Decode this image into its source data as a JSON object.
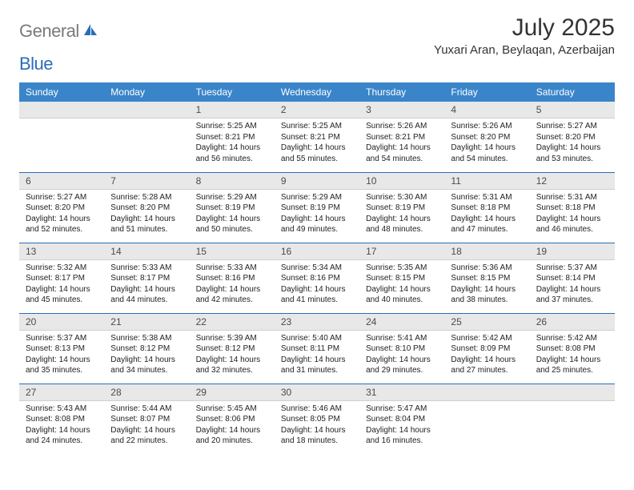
{
  "logo": {
    "gray": "General",
    "blue": "Blue"
  },
  "title": "July 2025",
  "location": "Yuxari Aran, Beylaqan, Azerbaijan",
  "colors": {
    "header_bg": "#3a85c9",
    "header_fg": "#ffffff",
    "daynum_bg": "#e8e8e8",
    "rule": "#2a6db8"
  },
  "weekdays": [
    "Sunday",
    "Monday",
    "Tuesday",
    "Wednesday",
    "Thursday",
    "Friday",
    "Saturday"
  ],
  "weeks": [
    [
      null,
      null,
      {
        "n": "1",
        "sr": "5:25 AM",
        "ss": "8:21 PM",
        "dl": "14 hours and 56 minutes."
      },
      {
        "n": "2",
        "sr": "5:25 AM",
        "ss": "8:21 PM",
        "dl": "14 hours and 55 minutes."
      },
      {
        "n": "3",
        "sr": "5:26 AM",
        "ss": "8:21 PM",
        "dl": "14 hours and 54 minutes."
      },
      {
        "n": "4",
        "sr": "5:26 AM",
        "ss": "8:20 PM",
        "dl": "14 hours and 54 minutes."
      },
      {
        "n": "5",
        "sr": "5:27 AM",
        "ss": "8:20 PM",
        "dl": "14 hours and 53 minutes."
      }
    ],
    [
      {
        "n": "6",
        "sr": "5:27 AM",
        "ss": "8:20 PM",
        "dl": "14 hours and 52 minutes."
      },
      {
        "n": "7",
        "sr": "5:28 AM",
        "ss": "8:20 PM",
        "dl": "14 hours and 51 minutes."
      },
      {
        "n": "8",
        "sr": "5:29 AM",
        "ss": "8:19 PM",
        "dl": "14 hours and 50 minutes."
      },
      {
        "n": "9",
        "sr": "5:29 AM",
        "ss": "8:19 PM",
        "dl": "14 hours and 49 minutes."
      },
      {
        "n": "10",
        "sr": "5:30 AM",
        "ss": "8:19 PM",
        "dl": "14 hours and 48 minutes."
      },
      {
        "n": "11",
        "sr": "5:31 AM",
        "ss": "8:18 PM",
        "dl": "14 hours and 47 minutes."
      },
      {
        "n": "12",
        "sr": "5:31 AM",
        "ss": "8:18 PM",
        "dl": "14 hours and 46 minutes."
      }
    ],
    [
      {
        "n": "13",
        "sr": "5:32 AM",
        "ss": "8:17 PM",
        "dl": "14 hours and 45 minutes."
      },
      {
        "n": "14",
        "sr": "5:33 AM",
        "ss": "8:17 PM",
        "dl": "14 hours and 44 minutes."
      },
      {
        "n": "15",
        "sr": "5:33 AM",
        "ss": "8:16 PM",
        "dl": "14 hours and 42 minutes."
      },
      {
        "n": "16",
        "sr": "5:34 AM",
        "ss": "8:16 PM",
        "dl": "14 hours and 41 minutes."
      },
      {
        "n": "17",
        "sr": "5:35 AM",
        "ss": "8:15 PM",
        "dl": "14 hours and 40 minutes."
      },
      {
        "n": "18",
        "sr": "5:36 AM",
        "ss": "8:15 PM",
        "dl": "14 hours and 38 minutes."
      },
      {
        "n": "19",
        "sr": "5:37 AM",
        "ss": "8:14 PM",
        "dl": "14 hours and 37 minutes."
      }
    ],
    [
      {
        "n": "20",
        "sr": "5:37 AM",
        "ss": "8:13 PM",
        "dl": "14 hours and 35 minutes."
      },
      {
        "n": "21",
        "sr": "5:38 AM",
        "ss": "8:12 PM",
        "dl": "14 hours and 34 minutes."
      },
      {
        "n": "22",
        "sr": "5:39 AM",
        "ss": "8:12 PM",
        "dl": "14 hours and 32 minutes."
      },
      {
        "n": "23",
        "sr": "5:40 AM",
        "ss": "8:11 PM",
        "dl": "14 hours and 31 minutes."
      },
      {
        "n": "24",
        "sr": "5:41 AM",
        "ss": "8:10 PM",
        "dl": "14 hours and 29 minutes."
      },
      {
        "n": "25",
        "sr": "5:42 AM",
        "ss": "8:09 PM",
        "dl": "14 hours and 27 minutes."
      },
      {
        "n": "26",
        "sr": "5:42 AM",
        "ss": "8:08 PM",
        "dl": "14 hours and 25 minutes."
      }
    ],
    [
      {
        "n": "27",
        "sr": "5:43 AM",
        "ss": "8:08 PM",
        "dl": "14 hours and 24 minutes."
      },
      {
        "n": "28",
        "sr": "5:44 AM",
        "ss": "8:07 PM",
        "dl": "14 hours and 22 minutes."
      },
      {
        "n": "29",
        "sr": "5:45 AM",
        "ss": "8:06 PM",
        "dl": "14 hours and 20 minutes."
      },
      {
        "n": "30",
        "sr": "5:46 AM",
        "ss": "8:05 PM",
        "dl": "14 hours and 18 minutes."
      },
      {
        "n": "31",
        "sr": "5:47 AM",
        "ss": "8:04 PM",
        "dl": "14 hours and 16 minutes."
      },
      null,
      null
    ]
  ],
  "labels": {
    "sunrise": "Sunrise: ",
    "sunset": "Sunset: ",
    "daylight": "Daylight: "
  }
}
